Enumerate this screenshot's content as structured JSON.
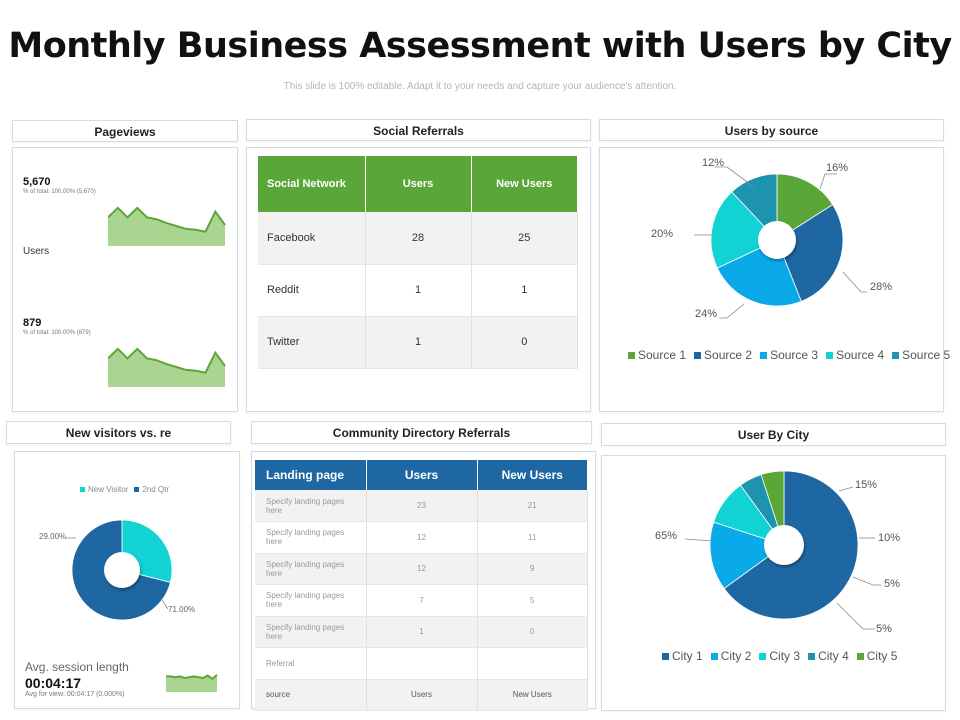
{
  "title": "Monthly Business Assessment with Users by City",
  "subtitle": "This slide is 100% editable. Adapt it to your needs and capture your audience's attention.",
  "pageviews": {
    "header": "Pageviews",
    "metric1_value": "5,670",
    "metric1_sub": "% of total: 100.00% (5,670)",
    "users_label": "Users",
    "metric2_value": "879",
    "metric2_sub": "% of total: 100.00% (879)"
  },
  "social_referrals": {
    "header": "Social Referrals",
    "columns": [
      "Social Network",
      "Users",
      "New Users"
    ],
    "rows": [
      [
        "Facebook",
        "28",
        "25"
      ],
      [
        "Reddit",
        "1",
        "1"
      ],
      [
        "Twitter",
        "1",
        "0"
      ]
    ]
  },
  "users_by_source": {
    "header": "Users by source",
    "legend": [
      "Source 1",
      "Source 2",
      "Source 3",
      "Source 4",
      "Source 5"
    ],
    "labels": [
      "16%",
      "28%",
      "24%",
      "20%",
      "12%"
    ]
  },
  "new_visitors": {
    "header": "New visitors vs. re",
    "legend": [
      "New Visitor",
      "2nd Qtr"
    ],
    "labels": [
      "29.00%",
      "71.00%"
    ],
    "avg_label": "Avg. session length",
    "avg_value": "00:04:17",
    "avg_sub": "Avg for view: 00:04:17 (0.000%)"
  },
  "community": {
    "header": "Community Directory Referrals",
    "columns": [
      "Landing page",
      "Users",
      "New Users"
    ],
    "rows": [
      [
        "Specify landing pages here",
        "23",
        "21"
      ],
      [
        "Specify landing pages here",
        "12",
        "11"
      ],
      [
        "Specify landing pages here",
        "12",
        "9"
      ],
      [
        "Specify landing pages here",
        "7",
        "5"
      ],
      [
        "Specify landing pages here",
        "1",
        "0"
      ],
      [
        "Referral",
        "",
        ""
      ],
      [
        "source",
        "Users",
        "New Users"
      ]
    ]
  },
  "user_by_city": {
    "header": "User By City",
    "legend": [
      "City 1",
      "City 2",
      "City 3",
      "City 4",
      "City 5"
    ],
    "labels": [
      "65%",
      "15%",
      "10%",
      "5%",
      "5%"
    ]
  },
  "chart_data": [
    {
      "type": "area",
      "title": "Pageviews",
      "series": [
        {
          "values": [
            3,
            4,
            3,
            4,
            3,
            2.8,
            2.4,
            2.1,
            1.8,
            1.7,
            1.5,
            3.6,
            2.2
          ]
        }
      ],
      "color": "#5ba638"
    },
    {
      "type": "area",
      "title": "Users",
      "series": [
        {
          "values": [
            3,
            4,
            3,
            4,
            3,
            2.8,
            2.4,
            2.1,
            1.8,
            1.7,
            1.5,
            3.6,
            2.2
          ]
        }
      ],
      "color": "#5ba638"
    },
    {
      "type": "pie",
      "title": "Users by source",
      "categories": [
        "Source 1",
        "Source 2",
        "Source 3",
        "Source 4",
        "Source 5"
      ],
      "values": [
        16,
        28,
        24,
        20,
        12
      ],
      "colors": [
        "#5ba638",
        "#1f67a3",
        "#0aaae8",
        "#11d3d3",
        "#1d93b0"
      ]
    },
    {
      "type": "pie",
      "title": "New visitors vs. re",
      "categories": [
        "New Visitor",
        "2nd Qtr"
      ],
      "values": [
        29,
        71
      ],
      "colors": [
        "#11d3d3",
        "#1f67a3"
      ]
    },
    {
      "type": "pie",
      "title": "User By City",
      "categories": [
        "City 1",
        "City 2",
        "City 3",
        "City 4",
        "City 5"
      ],
      "values": [
        65,
        15,
        10,
        5,
        5
      ],
      "colors": [
        "#1f67a3",
        "#0aaae8",
        "#11d3d3",
        "#1d93b0",
        "#5ba638"
      ]
    },
    {
      "type": "area",
      "title": "Avg. session length",
      "series": [
        {
          "values": [
            2,
            2,
            1.9,
            2,
            1.8,
            1.9,
            2,
            1.9,
            1.8,
            2.1,
            1.7,
            2.2
          ]
        }
      ],
      "color": "#5ba638"
    }
  ]
}
